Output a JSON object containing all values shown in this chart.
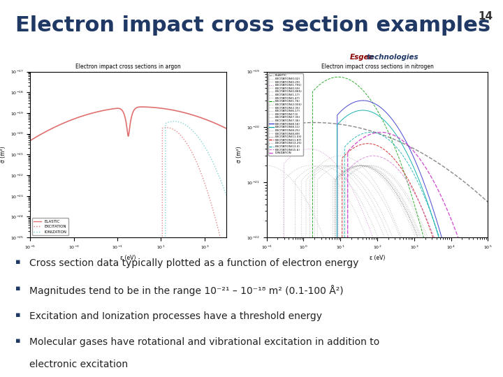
{
  "title": "Electron impact cross section examples",
  "slide_number": "14",
  "background_color": "#ffffff",
  "title_color": "#1F3864",
  "title_fontsize": 22,
  "header_bar_color": "#1F3864",
  "brand_color_esgee": "#8B0000",
  "brand_color_tech": "#1F3864",
  "brand_bar_color": "#1F3864",
  "bullet_color": "#1F3864",
  "bullet_fontsize": 10,
  "bullet_items": [
    "Cross section data typically plotted as a function of electron energy",
    "Magnitudes tend to be in the range 10⁻²¹ – 10⁻¹⁸ m² (0.1-100 Å²)",
    "Excitation and Ionization processes have a threshold energy",
    "Molecular gases have rotational and vibrational excitation in addition to\nelectronic excitation"
  ]
}
